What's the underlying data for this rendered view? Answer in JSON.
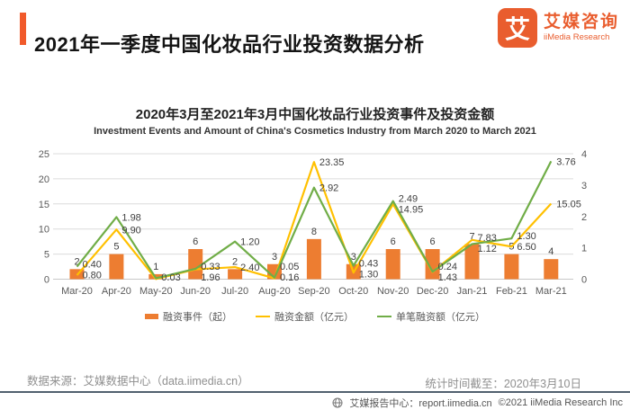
{
  "header": {
    "title": "2021年一季度中国化妆品行业投资数据分析",
    "logo": {
      "mark": "艾",
      "name_cn": "艾媒咨询",
      "name_en": "iiMedia Research"
    }
  },
  "chart": {
    "title": "2020年3月至2021年3月中国化妆品行业投资事件及投资金额",
    "subtitle": "Investment Events and Amount of China's Cosmetics Industry from March 2020 to March 2021"
  },
  "chart_data": {
    "type": "bar",
    "title": "2020年3月至2021年3月中国化妆品行业投资事件及投资金额",
    "categories": [
      "Mar-20",
      "Apr-20",
      "May-20",
      "Jun-20",
      "Jul-20",
      "Aug-20",
      "Sep-20",
      "Oct-20",
      "Nov-20",
      "Dec-20",
      "Jan-21",
      "Feb-21",
      "Mar-21"
    ],
    "series": [
      {
        "name": "融资事件（起）",
        "type": "bar",
        "axis": "left",
        "color": "#ED7D31",
        "values": [
          2,
          5,
          1,
          6,
          2,
          3,
          8,
          3,
          6,
          6,
          7,
          5,
          4
        ]
      },
      {
        "name": "融资金额（亿元）",
        "type": "line",
        "axis": "left",
        "color": "#FFC000",
        "values": [
          0.8,
          9.9,
          0.03,
          1.96,
          2.4,
          0.16,
          23.35,
          1.3,
          14.95,
          1.43,
          7.83,
          6.5,
          15.05
        ]
      },
      {
        "name": "单笔融资额（亿元）",
        "type": "line",
        "axis": "right",
        "color": "#70AD47",
        "values": [
          0.4,
          1.98,
          0.03,
          0.33,
          1.2,
          0.05,
          2.92,
          0.43,
          2.49,
          0.24,
          1.12,
          1.3,
          3.76
        ]
      }
    ],
    "left_axis": {
      "min": 0,
      "max": 25,
      "ticks": [
        0,
        5,
        10,
        15,
        20,
        25
      ]
    },
    "right_axis": {
      "min": 0,
      "max": 4,
      "ticks": [
        0,
        1,
        2,
        3,
        4
      ]
    },
    "grid": true,
    "data_labels": true,
    "legend_position": "bottom"
  },
  "footer": {
    "source": "数据来源：艾媒数据中心（data.iimedia.cn）",
    "stat_time": "统计时间截至：2020年3月10日",
    "report_center": "艾媒报告中心：report.iimedia.cn",
    "copyright": "©2021  iiMedia Research  Inc"
  },
  "colors": {
    "accent": "#F15A2B",
    "bar": "#ED7D31",
    "amount_line": "#FFC000",
    "per_deal_line": "#70AD47",
    "grid": "#DCDCDC"
  }
}
